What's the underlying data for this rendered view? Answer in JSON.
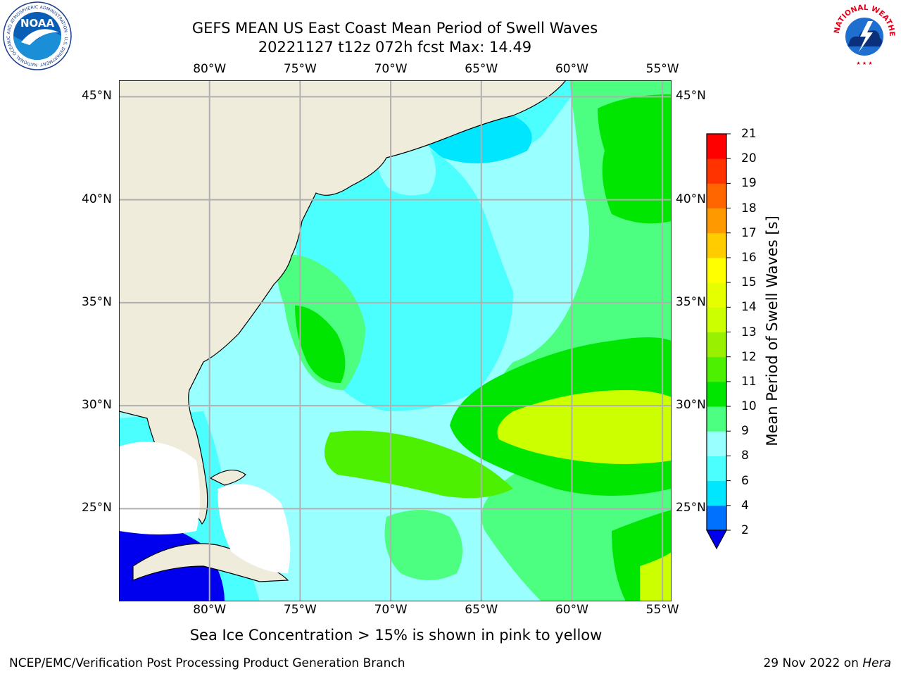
{
  "title_line1": "GEFS MEAN US East Coast Mean Period of Swell Waves",
  "title_line2": "20221127 t12z 072h fcst   Max: 14.49",
  "logos": {
    "noaa_text": "NOAA",
    "noaa_ring_text": "NATIONAL OCEANIC AND ATMOSPHERIC ADMINISTRATION · U.S. DEPARTMENT OF COMMERCE",
    "nws_ring_text": "NATIONAL WEATHER SERVICE"
  },
  "map": {
    "lon_range": [
      -85,
      -54.5
    ],
    "lat_range": [
      20.5,
      45.8
    ],
    "lon_ticks": [
      {
        "value": -80,
        "label": "80°W"
      },
      {
        "value": -75,
        "label": "75°W"
      },
      {
        "value": -70,
        "label": "70°W"
      },
      {
        "value": -65,
        "label": "65°W"
      },
      {
        "value": -60,
        "label": "60°W"
      },
      {
        "value": -55,
        "label": "55°W"
      }
    ],
    "lat_ticks": [
      {
        "value": 45,
        "label": "45°N"
      },
      {
        "value": 40,
        "label": "40°N"
      },
      {
        "value": 35,
        "label": "35°N"
      },
      {
        "value": 30,
        "label": "30°N"
      },
      {
        "value": 25,
        "label": "25°N"
      }
    ],
    "land_color": "#efecdc",
    "grid_color": "#b0b0b0"
  },
  "colorbar": {
    "title": "Mean Period of Swell Waves [s]",
    "levels": [
      2,
      4,
      6,
      8,
      9,
      10,
      11,
      12,
      13,
      14,
      15,
      16,
      17,
      18,
      19,
      20,
      21
    ],
    "colors": [
      "#0070ff",
      "#00e6ff",
      "#4cffff",
      "#99ffff",
      "#4cff80",
      "#00e600",
      "#4cf000",
      "#99f000",
      "#ccff00",
      "#e6ff00",
      "#ffff00",
      "#ffcc00",
      "#ff9900",
      "#ff6600",
      "#ff3300",
      "#ff0000"
    ],
    "under_color": "#0000ee"
  },
  "note": "Sea Ice Concentration > 15% is shown in pink to yellow",
  "footer_left": "NCEP/EMC/Verification Post Processing Product Generation Branch",
  "footer_right_prefix": "29 Nov 2022 on ",
  "footer_right_host": "Hera"
}
